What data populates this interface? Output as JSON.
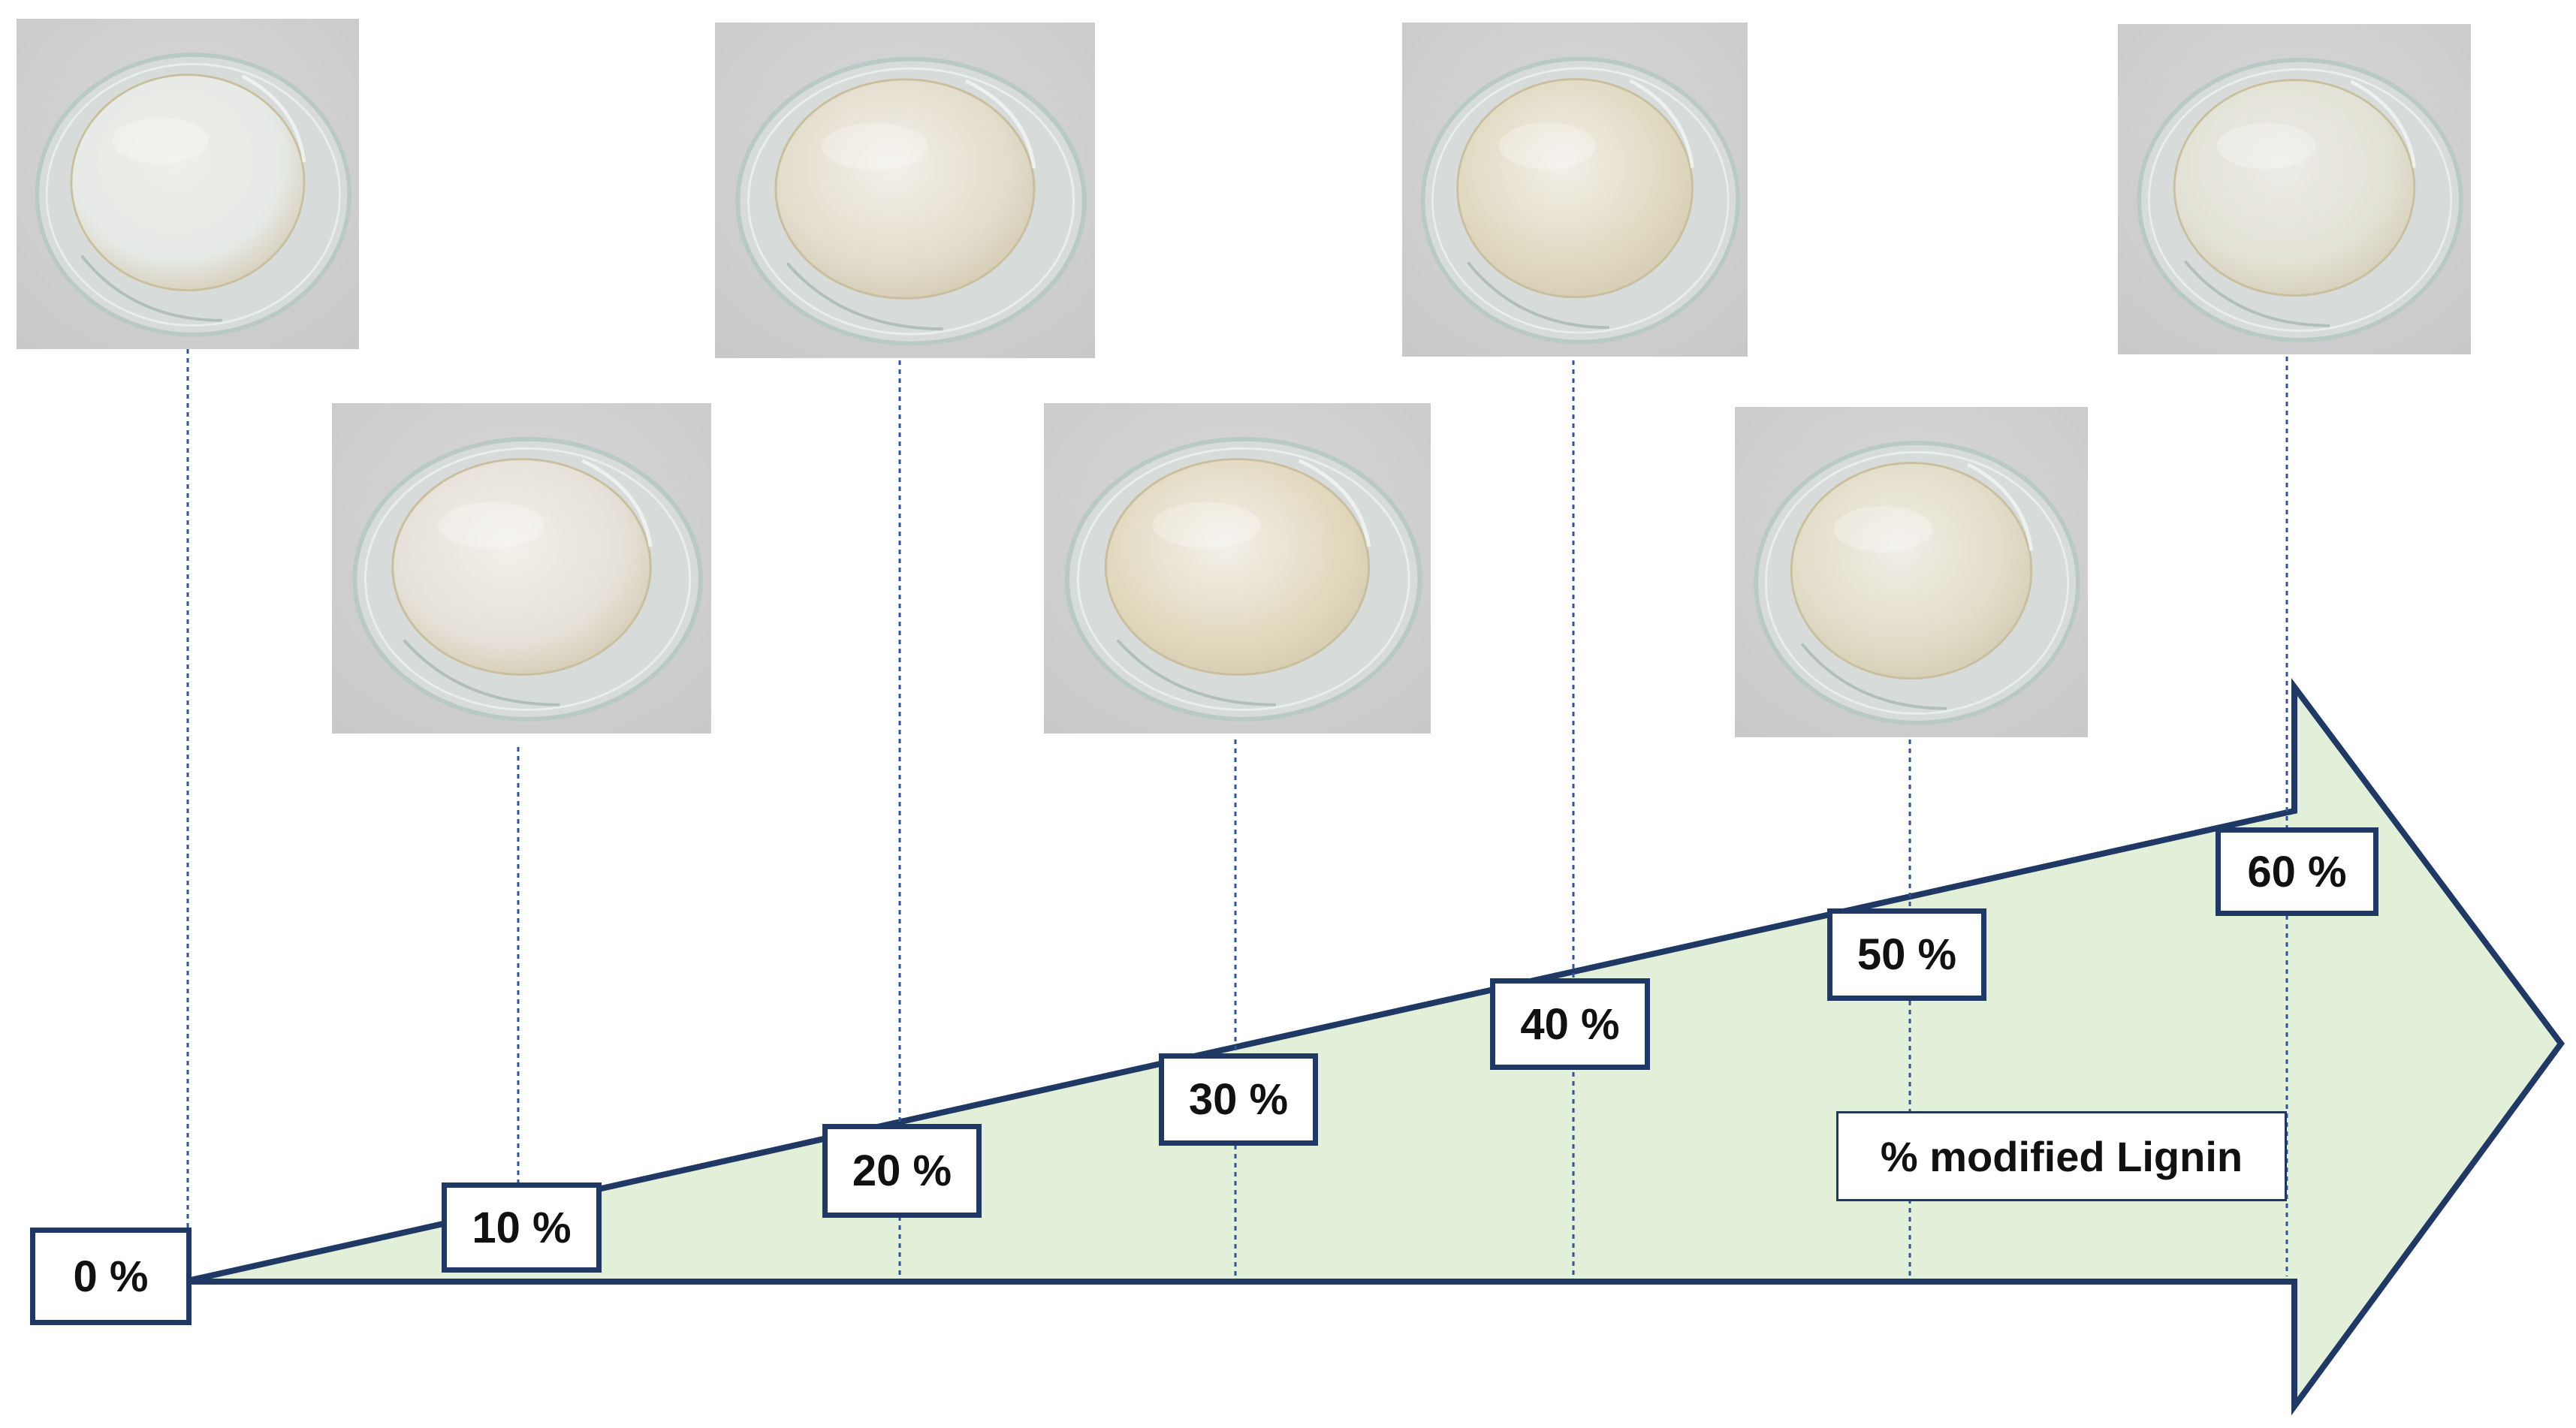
{
  "colors": {
    "arrow_fill": "#e2efd9",
    "arrow_stroke": "#1f3864",
    "guide_line": "#2f5597",
    "photo_background": "#c9c9cb",
    "glass_rim": "#b9c9c4"
  },
  "axis_label": "% modified Lignin",
  "samples": [
    {
      "label": "0 %",
      "photo": "petri-dish-gel-icon",
      "gel_color": "#e9ece9",
      "gel_opacity": 0.85
    },
    {
      "label": "10 %",
      "photo": "petri-dish-gel-icon",
      "gel_color": "#e6e1d7",
      "gel_opacity": 0.95
    },
    {
      "label": "20 %",
      "photo": "petri-dish-gel-icon",
      "gel_color": "#e3dccb",
      "gel_opacity": 0.95
    },
    {
      "label": "30 %",
      "photo": "petri-dish-gel-icon",
      "gel_color": "#e2d8bc",
      "gel_opacity": 0.95
    },
    {
      "label": "40 %",
      "photo": "petri-dish-gel-icon",
      "gel_color": "#e1d9bd",
      "gel_opacity": 0.9
    },
    {
      "label": "50 %",
      "photo": "petri-dish-gel-icon",
      "gel_color": "#e3dcc2",
      "gel_opacity": 0.85
    },
    {
      "label": "60 %",
      "photo": "petri-dish-gel-icon",
      "gel_color": "#e6e3d3",
      "gel_opacity": 0.75
    }
  ]
}
